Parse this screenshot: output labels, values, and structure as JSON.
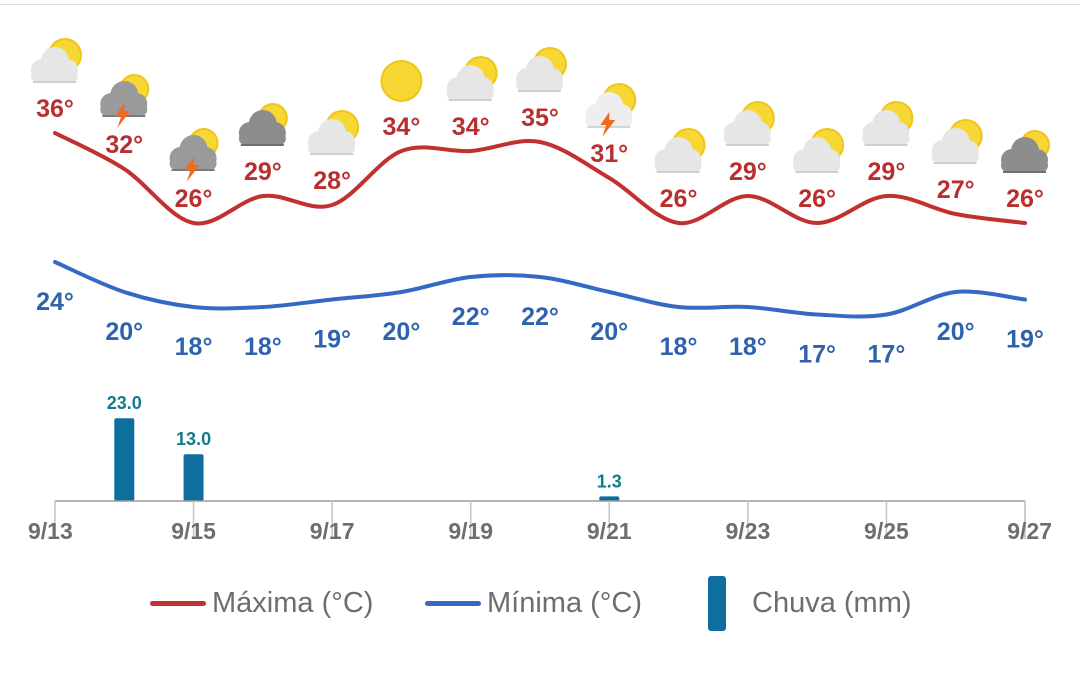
{
  "chart_data": {
    "type": "line",
    "x": [
      "9/13",
      "9/14",
      "9/15",
      "9/16",
      "9/17",
      "9/18",
      "9/19",
      "9/20",
      "9/21",
      "9/22",
      "9/23",
      "9/24",
      "9/25",
      "9/26",
      "9/27"
    ],
    "x_tick_labels": [
      "9/13",
      "9/15",
      "9/17",
      "9/19",
      "9/21",
      "9/23",
      "9/25",
      "9/27"
    ],
    "series": [
      {
        "name": "Máxima (°C)",
        "type": "line",
        "color": "#c0312f",
        "values": [
          36,
          32,
          26,
          29,
          28,
          34,
          34,
          35,
          31,
          26,
          29,
          26,
          29,
          27,
          26
        ],
        "labels": [
          "36°",
          "32°",
          "26°",
          "29°",
          "28°",
          "34°",
          "34°",
          "35°",
          "31°",
          "26°",
          "29°",
          "26°",
          "29°",
          "27°",
          "26°"
        ]
      },
      {
        "name": "Mínima (°C)",
        "type": "line",
        "color": "#3469c4",
        "values": [
          24,
          20,
          18,
          18,
          19,
          20,
          22,
          22,
          20,
          18,
          18,
          17,
          17,
          20,
          19
        ],
        "labels": [
          "24°",
          "20°",
          "18°",
          "18°",
          "19°",
          "20°",
          "22°",
          "22°",
          "20°",
          "18°",
          "18°",
          "17°",
          "17°",
          "20°",
          "19°"
        ]
      },
      {
        "name": "Chuva (mm)",
        "type": "bar",
        "color": "#0e6f9e",
        "values": [
          0,
          23.0,
          13.0,
          0,
          0,
          0,
          0,
          0,
          1.3,
          0,
          0,
          0,
          0,
          0,
          0
        ],
        "labels": [
          "",
          "23.0",
          "13.0",
          "",
          "",
          "",
          "",
          "",
          "1.3",
          "",
          "",
          "",
          "",
          "",
          ""
        ]
      }
    ],
    "weather_icons": [
      "partly-cloudy-icon",
      "storm-icon",
      "storm-icon",
      "cloudy-icon",
      "partly-cloudy-icon",
      "sun-icon",
      "partly-cloudy-icon",
      "partly-cloudy-icon",
      "sun-storm-icon",
      "partly-cloudy-icon",
      "partly-cloudy-icon",
      "partly-cloudy-icon",
      "partly-cloudy-icon",
      "partly-cloudy-icon",
      "cloudy-icon"
    ],
    "legend": {
      "position": "bottom"
    },
    "grid": false
  },
  "legend": {
    "max_label": "Máxima (°C)",
    "min_label": "Mínima (°C)",
    "rain_label": "Chuva (mm)"
  },
  "colors": {
    "max": "#c0312f",
    "min": "#3469c4",
    "rain": "#0e6f9e",
    "rain_label": "#137b8e",
    "axis": "#9a9a9a"
  }
}
